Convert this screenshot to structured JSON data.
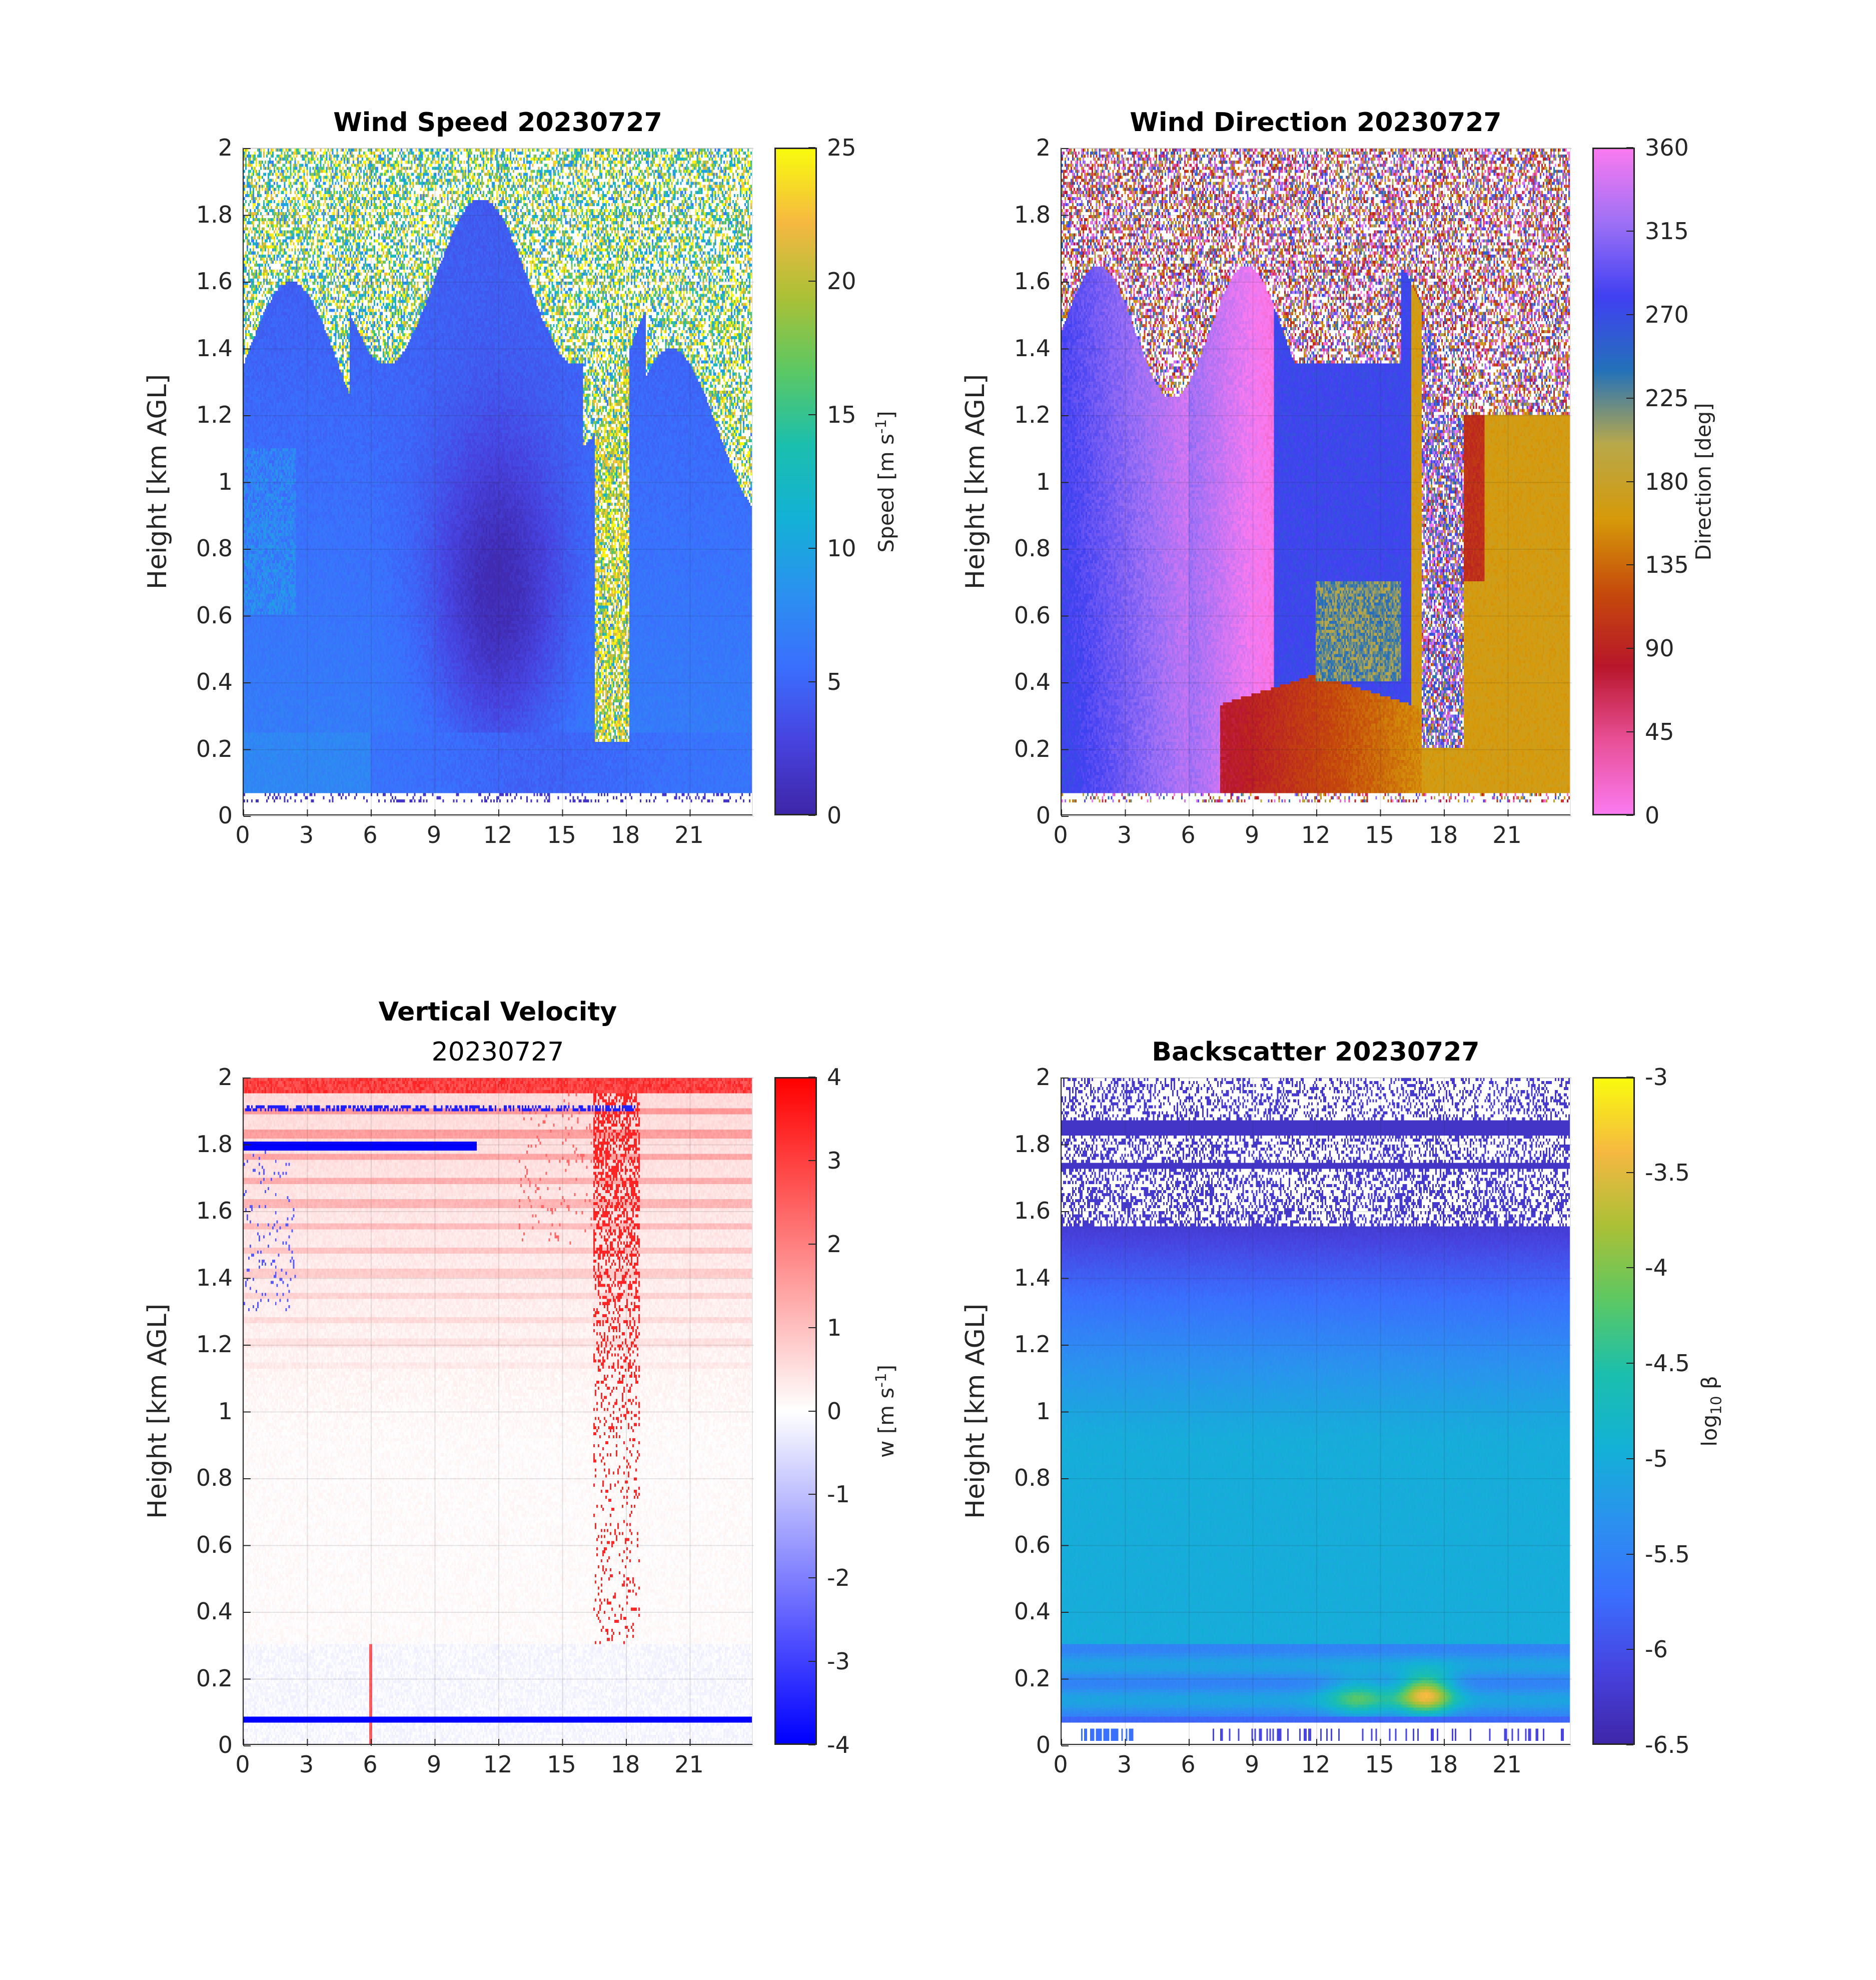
{
  "chart_data": [
    {
      "id": "wind_speed",
      "type": "heatmap",
      "title": "Wind Speed 20230727",
      "subtitle": "",
      "xlabel": "",
      "ylabel": "Height [km AGL]",
      "xlim": [
        0,
        24
      ],
      "ylim": [
        0,
        2
      ],
      "xticks": [
        0,
        3,
        6,
        9,
        12,
        15,
        18,
        21
      ],
      "yticks": [
        0,
        0.2,
        0.4,
        0.6,
        0.8,
        1,
        1.2,
        1.4,
        1.6,
        1.8,
        2
      ],
      "ytick_labels": [
        "0",
        "0.2",
        "0.4",
        "0.6",
        "0.8",
        "1",
        "1.2",
        "1.4",
        "1.6",
        "1.8",
        "2"
      ],
      "colorbar": {
        "label": "Speed [m s-1]",
        "label_main": "Speed [m s",
        "label_sup": "-1",
        "label_end": "]",
        "range": [
          0,
          25
        ],
        "ticks": [
          0,
          5,
          10,
          15,
          20,
          25
        ],
        "colormap": "parula",
        "colors": [
          "#3e26a8",
          "#4743e0",
          "#3a6ffe",
          "#2b91ef",
          "#13b1d6",
          "#1bbfad",
          "#5cc863",
          "#abc036",
          "#f5b841",
          "#f9fb0e"
        ]
      },
      "description": "Speeds ~5-8 m/s near surface, minimum 1-3 m/s between 9-15 h at 0.3-1.2 km; noisy high values above ~1.4 km; data gap columns near 17-18 h"
    },
    {
      "id": "wind_direction",
      "type": "heatmap",
      "title": "Wind Direction 20230727",
      "subtitle": "",
      "xlabel": "",
      "ylabel": "Height [km AGL]",
      "xlim": [
        0,
        24
      ],
      "ylim": [
        0,
        2
      ],
      "xticks": [
        0,
        3,
        6,
        9,
        12,
        15,
        18,
        21
      ],
      "yticks": [
        0,
        0.2,
        0.4,
        0.6,
        0.8,
        1,
        1.2,
        1.4,
        1.6,
        1.8,
        2
      ],
      "ytick_labels": [
        "0",
        "0.2",
        "0.4",
        "0.6",
        "0.8",
        "1",
        "1.2",
        "1.4",
        "1.6",
        "1.8",
        "2"
      ],
      "colorbar": {
        "label": "Direction [deg]",
        "range": [
          0,
          360
        ],
        "ticks": [
          0,
          45,
          90,
          135,
          180,
          225,
          270,
          315,
          360
        ],
        "colormap": "cyclic",
        "colors": [
          "#fa7af0",
          "#e84f96",
          "#b8162a",
          "#c54a0b",
          "#d69a0a",
          "#b8a84a",
          "#2371b9",
          "#4040f2",
          "#9d70f5",
          "#fa7af0"
        ]
      },
      "description": "Westerly to northwesterly (270-330 deg) in early hours, northerly (~0-20 deg) by 6-9 h, easterly (~90 deg) below 0.4 km 8-17 h, westerly (~270 deg) aloft 10-16 h, southerly (~150-200 deg) after 18 h"
    },
    {
      "id": "vertical_velocity",
      "type": "heatmap",
      "title": "Vertical Velocity",
      "subtitle": "20230727",
      "xlabel": "",
      "ylabel": "Height [km AGL]",
      "xlim": [
        0,
        24
      ],
      "ylim": [
        0,
        2
      ],
      "xticks": [
        0,
        3,
        6,
        9,
        12,
        15,
        18,
        21
      ],
      "yticks": [
        0,
        0.2,
        0.4,
        0.6,
        0.8,
        1,
        1.2,
        1.4,
        1.6,
        1.8,
        2
      ],
      "ytick_labels": [
        "0",
        "0.2",
        "0.4",
        "0.6",
        "0.8",
        "1",
        "1.2",
        "1.4",
        "1.6",
        "1.8",
        "2"
      ],
      "colorbar": {
        "label": "w [m s-1]",
        "label_main": "w [m s",
        "label_sup": "-1",
        "label_end": "]",
        "range": [
          -4,
          4
        ],
        "ticks": [
          -4,
          -3,
          -2,
          -1,
          0,
          1,
          2,
          3,
          4
        ],
        "colormap": "bwr",
        "colors": [
          "#0000ff",
          "#ffffff",
          "#ff0000"
        ]
      },
      "description": "Near-zero w below 1 km; positive bands above 1.3 km; strong updraft streaks around 17-18 h; strong negative band near 1.8 km until ~11 h and at ~0.07 km"
    },
    {
      "id": "backscatter",
      "type": "heatmap",
      "title": "Backscatter 20230727",
      "subtitle": "",
      "xlabel": "",
      "ylabel": "Height [km AGL]",
      "xlim": [
        0,
        24
      ],
      "ylim": [
        0,
        2
      ],
      "xticks": [
        0,
        3,
        6,
        9,
        12,
        15,
        18,
        21
      ],
      "yticks": [
        0,
        0.2,
        0.4,
        0.6,
        0.8,
        1,
        1.2,
        1.4,
        1.6,
        1.8,
        2
      ],
      "ytick_labels": [
        "0",
        "0.2",
        "0.4",
        "0.6",
        "0.8",
        "1",
        "1.2",
        "1.4",
        "1.6",
        "1.8",
        "2"
      ],
      "colorbar": {
        "label": "log10 β",
        "label_main": "log",
        "label_sub": "10",
        "label_end": " β",
        "range": [
          -6.5,
          -3
        ],
        "ticks": [
          -6.5,
          -6,
          -5.5,
          -5,
          -4.5,
          -4,
          -3.5,
          -3
        ],
        "tick_labels": [
          "-6.5",
          "-6",
          "-5.5",
          "-5",
          "-4.5",
          "-4",
          "-3.5",
          "-3"
        ],
        "colormap": "parula",
        "colors": [
          "#3e26a8",
          "#4743e0",
          "#3a6ffe",
          "#2b91ef",
          "#13b1d6",
          "#1bbfad",
          "#5cc863",
          "#abc036",
          "#f5b841",
          "#f9fb0e"
        ]
      },
      "description": "log10 beta ~ -5 below 1 km decreasing to ~ -6.3 near 1.5 km; noisy low values above 1.55 km; enhanced aerosol (~ -3.6) near 0.1-0.2 km around 16-19 h"
    }
  ]
}
